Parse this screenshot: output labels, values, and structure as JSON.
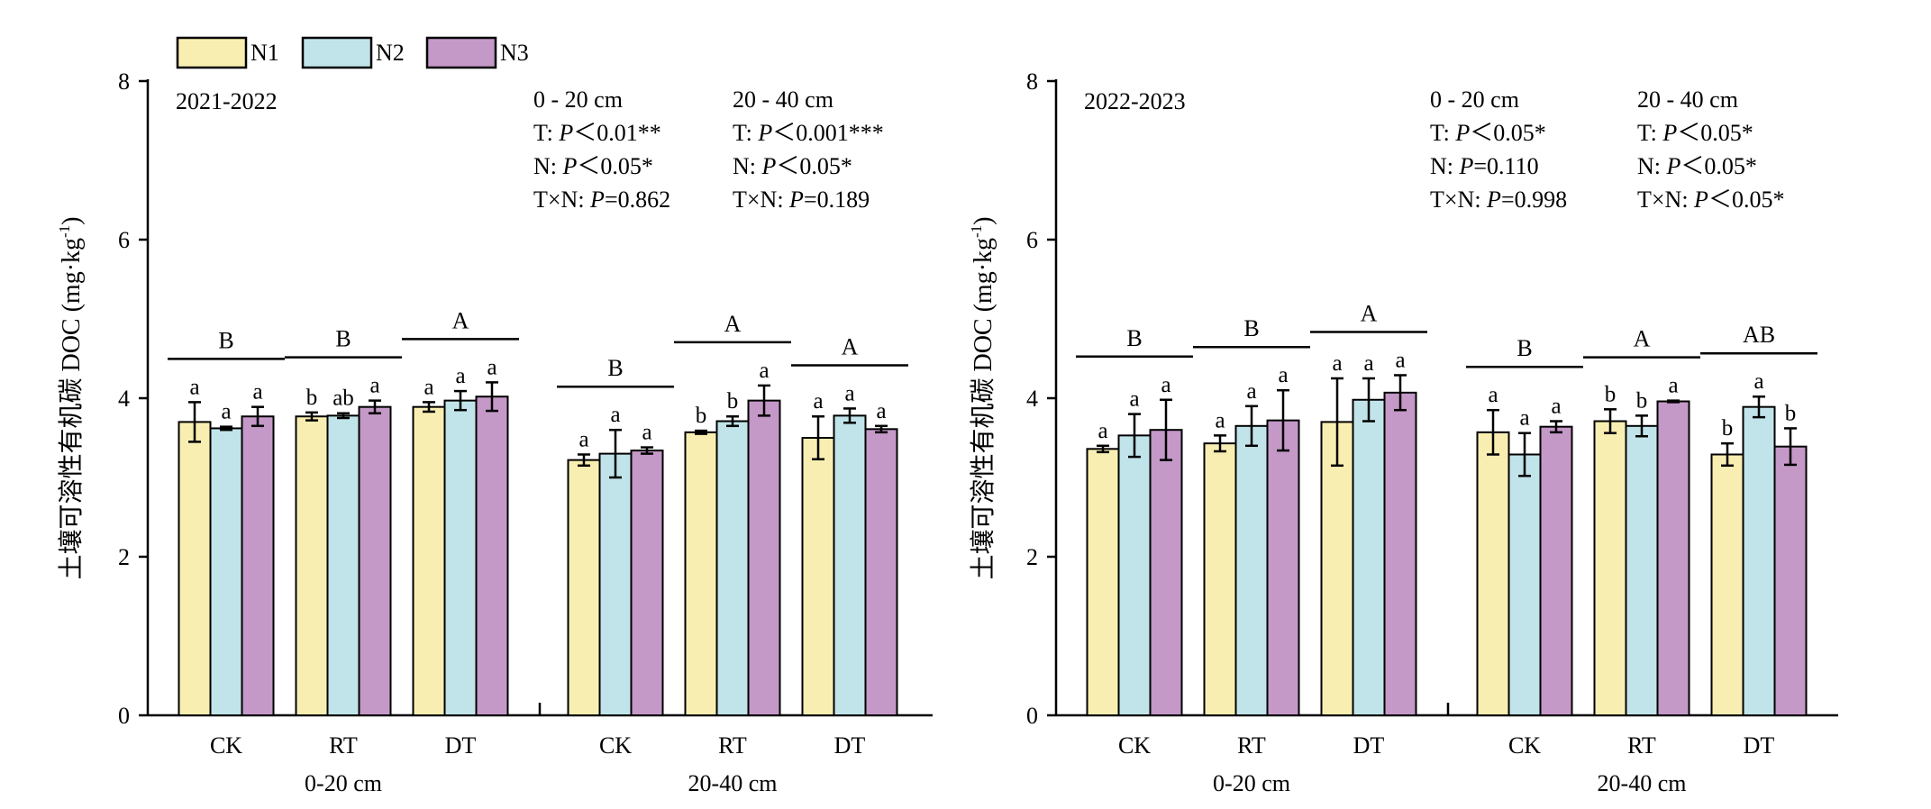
{
  "legend": [
    {
      "name": "N1",
      "color": "#f9eeb1"
    },
    {
      "name": "N2",
      "color": "#c1e4ea"
    },
    {
      "name": "N3",
      "color": "#c498c7"
    }
  ],
  "ylabel": "土壤可溶性有机碳 DOC (mg·kg",
  "ylabel_sup": "-1",
  "ylabel_close": ")",
  "chart_data": [
    {
      "type": "bar",
      "period": "2021-2022",
      "ylim": [
        0,
        8
      ],
      "yticks": [
        0,
        2,
        4,
        6,
        8
      ],
      "groups": [
        {
          "depth": "0-20 cm",
          "categories": [
            "CK",
            "RT",
            "DT"
          ],
          "series": [
            {
              "name": "N1",
              "values": [
                3.7,
                3.77,
                3.89
              ],
              "errors": [
                0.25,
                0.05,
                0.06
              ],
              "letters": [
                "a",
                "b",
                "a"
              ]
            },
            {
              "name": "N2",
              "values": [
                3.62,
                3.78,
                3.97
              ],
              "errors": [
                0.02,
                0.03,
                0.12
              ],
              "letters": [
                "a",
                "ab",
                "a"
              ]
            },
            {
              "name": "N3",
              "values": [
                3.77,
                3.89,
                4.02
              ],
              "errors": [
                0.12,
                0.08,
                0.18
              ],
              "letters": [
                "a",
                "a",
                "a"
              ]
            }
          ],
          "group_letters": [
            "B",
            "B",
            "A"
          ]
        },
        {
          "depth": "20-40 cm",
          "categories": [
            "CK",
            "RT",
            "DT"
          ],
          "series": [
            {
              "name": "N1",
              "values": [
                3.22,
                3.57,
                3.5
              ],
              "errors": [
                0.07,
                0.02,
                0.27
              ],
              "letters": [
                "a",
                "b",
                "a"
              ]
            },
            {
              "name": "N2",
              "values": [
                3.3,
                3.71,
                3.78
              ],
              "errors": [
                0.3,
                0.06,
                0.09
              ],
              "letters": [
                "a",
                "b",
                "a"
              ]
            },
            {
              "name": "N3",
              "values": [
                3.34,
                3.97,
                3.61
              ],
              "errors": [
                0.04,
                0.19,
                0.04
              ],
              "letters": [
                "a",
                "a",
                "a"
              ]
            }
          ],
          "group_letters": [
            "B",
            "A",
            "A"
          ]
        }
      ],
      "stats": [
        {
          "header": "0 - 20 cm",
          "rows": [
            {
              "prefix": "T: ",
              "p": "P",
              "rest": "＜0.01**"
            },
            {
              "prefix": "N: ",
              "p": "P",
              "rest": "＜0.05*"
            },
            {
              "prefix": "T×N: ",
              "p": "P",
              "rest": "=0.862"
            }
          ]
        },
        {
          "header": "20 - 40 cm",
          "rows": [
            {
              "prefix": "T: ",
              "p": "P",
              "rest": "＜0.001***"
            },
            {
              "prefix": "N: ",
              "p": "P",
              "rest": "＜0.05*"
            },
            {
              "prefix": "T×N: ",
              "p": "P",
              "rest": "=0.189"
            }
          ]
        }
      ]
    },
    {
      "type": "bar",
      "period": "2022-2023",
      "ylim": [
        0,
        8
      ],
      "yticks": [
        0,
        2,
        4,
        6,
        8
      ],
      "groups": [
        {
          "depth": "0-20 cm",
          "categories": [
            "CK",
            "RT",
            "DT"
          ],
          "series": [
            {
              "name": "N1",
              "values": [
                3.36,
                3.43,
                3.7
              ],
              "errors": [
                0.04,
                0.1,
                0.55
              ],
              "letters": [
                "a",
                "a",
                "a"
              ]
            },
            {
              "name": "N2",
              "values": [
                3.53,
                3.65,
                3.98
              ],
              "errors": [
                0.27,
                0.25,
                0.27
              ],
              "letters": [
                "a",
                "a",
                "a"
              ]
            },
            {
              "name": "N3",
              "values": [
                3.6,
                3.72,
                4.07
              ],
              "errors": [
                0.38,
                0.38,
                0.22
              ],
              "letters": [
                "a",
                "a",
                "a"
              ]
            }
          ],
          "group_letters": [
            "B",
            "B",
            "A"
          ]
        },
        {
          "depth": "20-40 cm",
          "categories": [
            "CK",
            "RT",
            "DT"
          ],
          "series": [
            {
              "name": "N1",
              "values": [
                3.57,
                3.71,
                3.29
              ],
              "errors": [
                0.28,
                0.15,
                0.14
              ],
              "letters": [
                "a",
                "b",
                "b"
              ]
            },
            {
              "name": "N2",
              "values": [
                3.29,
                3.65,
                3.89
              ],
              "errors": [
                0.27,
                0.13,
                0.13
              ],
              "letters": [
                "a",
                "b",
                "a"
              ]
            },
            {
              "name": "N3",
              "values": [
                3.64,
                3.96,
                3.39
              ],
              "errors": [
                0.07,
                0.01,
                0.23
              ],
              "letters": [
                "a",
                "a",
                "b"
              ]
            }
          ],
          "group_letters": [
            "B",
            "A",
            "AB"
          ]
        }
      ],
      "stats": [
        {
          "header": "0 - 20 cm",
          "rows": [
            {
              "prefix": "T: ",
              "p": "P",
              "rest": "＜0.05*"
            },
            {
              "prefix": "N: ",
              "p": "P",
              "rest": "=0.110"
            },
            {
              "prefix": "T×N: ",
              "p": "P",
              "rest": "=0.998"
            }
          ]
        },
        {
          "header": "20 - 40 cm",
          "rows": [
            {
              "prefix": "T: ",
              "p": "P",
              "rest": "＜0.05*"
            },
            {
              "prefix": "N: ",
              "p": "P",
              "rest": "＜0.05*"
            },
            {
              "prefix": "T×N: ",
              "p": "P",
              "rest": "＜0.05*"
            }
          ]
        }
      ]
    }
  ]
}
